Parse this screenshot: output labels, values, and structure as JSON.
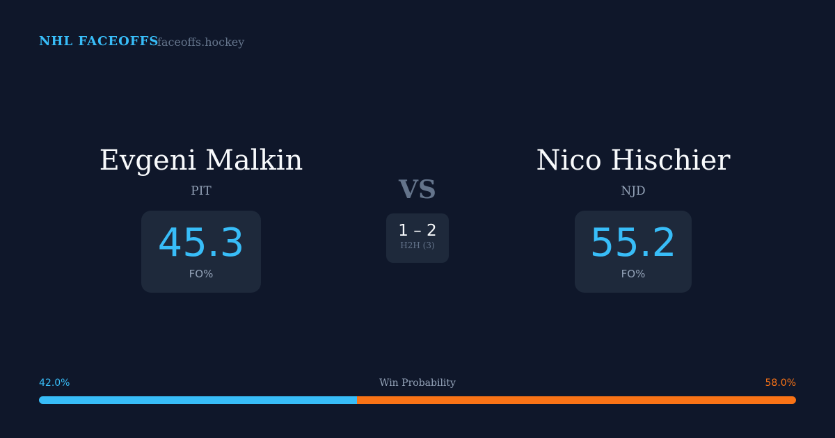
{
  "header": {
    "brand": "NHL FACEOFFS",
    "site": "faceoffs.hockey"
  },
  "player1": {
    "name": "Evgeni Malkin",
    "team": "PIT",
    "fo_pct": "45.3",
    "fo_label": "FO%"
  },
  "player2": {
    "name": "Nico Hischier",
    "team": "NJD",
    "fo_pct": "55.2",
    "fo_label": "FO%"
  },
  "matchup": {
    "vs": "VS",
    "score": "1 – 2",
    "h2h_label": "H2H (3)"
  },
  "win_probability": {
    "label": "Win Probability",
    "p1_text": "42.0%",
    "p2_text": "58.0%",
    "p1": 42.0,
    "p2": 58.0,
    "p1_color": "#38bdf8",
    "p2_color": "#f97316"
  }
}
